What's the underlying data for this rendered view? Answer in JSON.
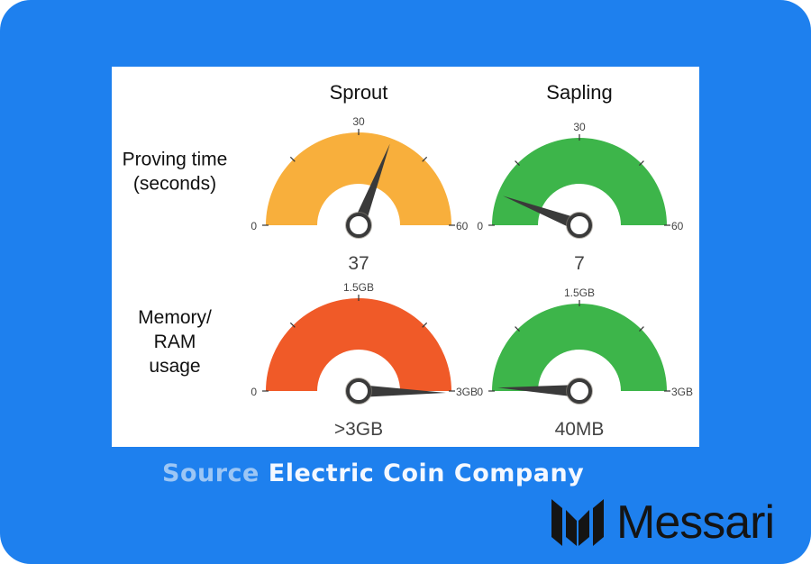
{
  "chart_data": {
    "type": "gauge",
    "columns": [
      "Sprout",
      "Sapling"
    ],
    "rows": [
      {
        "label_lines": [
          "Proving time",
          "(seconds)"
        ],
        "min": 0,
        "max": 60,
        "tick_labels": [
          "0",
          "30",
          "60"
        ],
        "unit": "seconds",
        "gauges": [
          {
            "column": "Sprout",
            "value": 37,
            "display": "37",
            "color": "#F8AF3C"
          },
          {
            "column": "Sapling",
            "value": 7,
            "display": "7",
            "color": "#3DB54A"
          }
        ]
      },
      {
        "label_lines": [
          "Memory/",
          "RAM",
          "usage"
        ],
        "min": 0,
        "max": 3,
        "tick_labels": [
          "0",
          "1.5GB",
          "3GB"
        ],
        "unit": "GB",
        "gauges": [
          {
            "column": "Sprout",
            "value": 3.02,
            "display": ">3GB",
            "color": "#F05A28"
          },
          {
            "column": "Sapling",
            "value": 0.04,
            "display": "40MB",
            "color": "#3DB54A"
          }
        ]
      }
    ]
  },
  "footer": {
    "source_label": "Source",
    "source_name": "Electric Coin Company"
  },
  "brand": {
    "name": "Messari",
    "background_color": "#1E80EE"
  }
}
